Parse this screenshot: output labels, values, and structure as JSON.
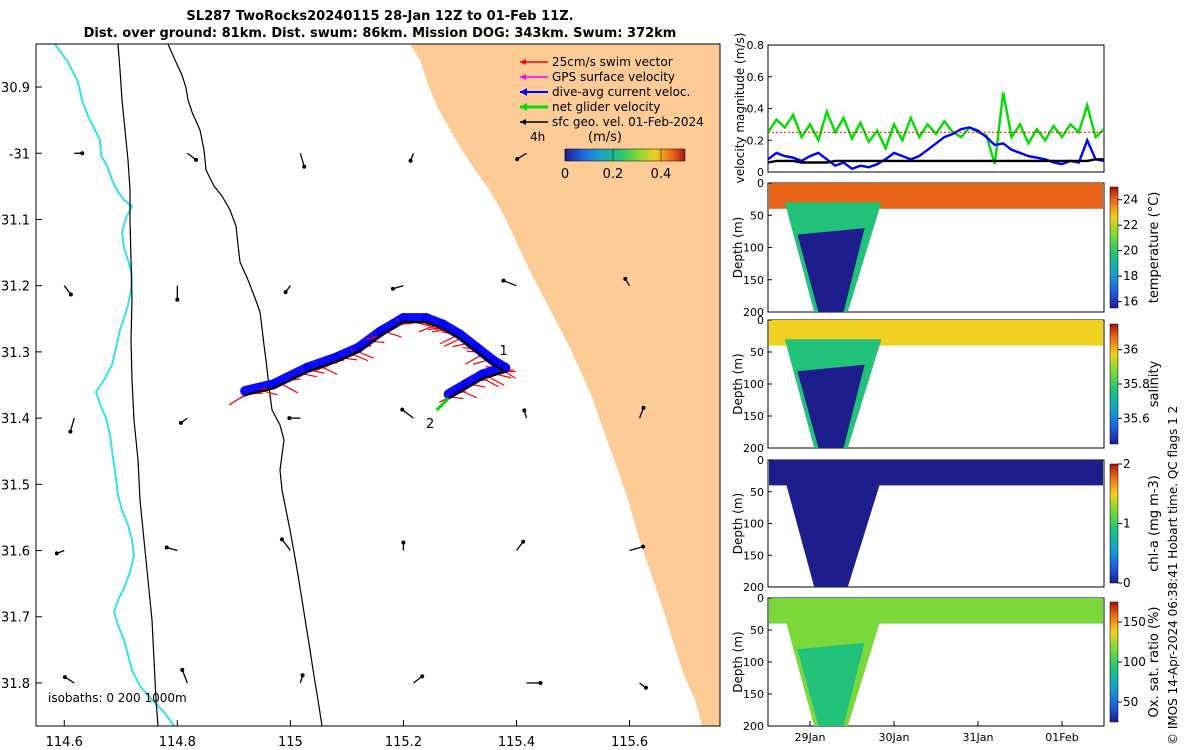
{
  "title_lines": [
    "SL287 TwoRocks20240115 28-Jan 12Z to 01-Feb 11Z.",
    "Dist. over ground: 81km. Dist. swum: 86km. Mission DOG: 343km. Swum: 372km"
  ],
  "side_note": "© IMOS 14-Apr-2024 06:38:41 Hobart time. QC flags 1  2",
  "colors": {
    "land": "#fccb96",
    "isobath_0": "#34e3e3",
    "swim_vector": "#ff0000",
    "gps_velocity": "#ff00ff",
    "current": "#0000ff",
    "net_velocity": "#00dd00",
    "geo_velocity": "#000000"
  },
  "chart_data": [
    {
      "type": "scatter",
      "name": "map",
      "x_ticks": [
        114.6,
        114.8,
        115,
        115.2,
        115.4,
        115.6
      ],
      "x_tick_labels": [
        "114.6",
        "114.8",
        "115",
        "115.2",
        "115.4",
        "115.6"
      ],
      "y_ticks": [
        -30.9,
        -31,
        -31.1,
        -31.2,
        -31.3,
        -31.4,
        -31.5,
        -31.6,
        -31.7,
        -31.8
      ],
      "y_tick_labels": [
        "30.9",
        "-31",
        "31.1",
        "31.2",
        "31.3",
        "31.4",
        "31.5",
        "31.6",
        "31.7",
        "31.8"
      ],
      "xlim": [
        114.55,
        115.76
      ],
      "ylim": [
        -31.865,
        -30.835
      ],
      "legend": {
        "position": "top-right",
        "entries": [
          {
            "label": "25cm/s swim vector",
            "color": "#ff0000"
          },
          {
            "label": "GPS surface velocity",
            "color": "#ff00ff"
          },
          {
            "label": "dive-avg current veloc.",
            "color": "#0000ff"
          },
          {
            "label": "net glider velocity",
            "color": "#00dd00"
          },
          {
            "label": "sfc geo. vel. 01-Feb-2024",
            "color": "#000000"
          }
        ]
      },
      "interval_label": "4h",
      "colorbar": {
        "title": "(m/s)",
        "range": [
          0,
          0.5
        ],
        "ticks": [
          0,
          0.2,
          0.4
        ],
        "tick_labels": [
          "0",
          "0.2",
          "0.4"
        ]
      },
      "isobath_label": "isobaths: 0   200  1000m",
      "track": [
        [
          114.92,
          -31.365
        ],
        [
          114.97,
          -31.355
        ],
        [
          115.03,
          -31.33
        ],
        [
          115.08,
          -31.315
        ],
        [
          115.12,
          -31.3
        ],
        [
          115.16,
          -31.275
        ],
        [
          115.2,
          -31.255
        ],
        [
          115.24,
          -31.255
        ],
        [
          115.27,
          -31.265
        ],
        [
          115.3,
          -31.28
        ],
        [
          115.33,
          -31.3
        ],
        [
          115.36,
          -31.32
        ],
        [
          115.38,
          -31.33
        ],
        [
          115.34,
          -31.34
        ],
        [
          115.31,
          -31.355
        ],
        [
          115.28,
          -31.37
        ]
      ],
      "waypoints": [
        {
          "label": "1",
          "lon": 115.37,
          "lat": -31.305
        },
        {
          "label": "2",
          "lon": 115.24,
          "lat": -31.415
        }
      ]
    },
    {
      "type": "line",
      "name": "velocity",
      "ylabel": "velocity magnitude (m/s)",
      "ylim": [
        0,
        0.8
      ],
      "yticks": [
        0,
        0.2,
        0.4,
        0.6,
        0.8
      ],
      "ytick_labels": [
        "0",
        "0.2",
        "0.4",
        "0.6",
        "0.8"
      ],
      "x": [
        0,
        0.1,
        0.2,
        0.3,
        0.4,
        0.5,
        0.6,
        0.7,
        0.8,
        0.9,
        1.0,
        1.1,
        1.2,
        1.3,
        1.4,
        1.5,
        1.6,
        1.7,
        1.8,
        1.9,
        2.0,
        2.1,
        2.2,
        2.3,
        2.4,
        2.5,
        2.6,
        2.7,
        2.8,
        2.9,
        3.0,
        3.1,
        3.2,
        3.3,
        3.4,
        3.5,
        3.6,
        3.7,
        3.8,
        3.9,
        4.0
      ],
      "series": [
        {
          "color": "#00dd00",
          "values": [
            0.25,
            0.33,
            0.28,
            0.36,
            0.22,
            0.3,
            0.2,
            0.38,
            0.25,
            0.34,
            0.21,
            0.31,
            0.19,
            0.26,
            0.15,
            0.3,
            0.2,
            0.34,
            0.22,
            0.3,
            0.24,
            0.32,
            0.25,
            0.22,
            0.28,
            0.25,
            0.23,
            0.05,
            0.5,
            0.22,
            0.3,
            0.18,
            0.27,
            0.2,
            0.29,
            0.22,
            0.3,
            0.25,
            0.42,
            0.22,
            0.27
          ]
        },
        {
          "color": "#0000ff",
          "values": [
            0.08,
            0.12,
            0.1,
            0.09,
            0.07,
            0.1,
            0.12,
            0.08,
            0.04,
            0.06,
            0.02,
            0.04,
            0.03,
            0.05,
            0.08,
            0.12,
            0.1,
            0.08,
            0.1,
            0.14,
            0.18,
            0.22,
            0.24,
            0.27,
            0.28,
            0.26,
            0.22,
            0.17,
            0.18,
            0.14,
            0.12,
            0.1,
            0.09,
            0.08,
            0.06,
            0.05,
            0.07,
            0.06,
            0.2,
            0.08,
            0.07
          ]
        },
        {
          "color": "#000000",
          "values": [
            0.06,
            0.07,
            0.07,
            0.07,
            0.06,
            0.06,
            0.06,
            0.06,
            0.07,
            0.07,
            0.07,
            0.07,
            0.07,
            0.07,
            0.07,
            0.07,
            0.07,
            0.07,
            0.07,
            0.07,
            0.07,
            0.07,
            0.07,
            0.07,
            0.07,
            0.07,
            0.07,
            0.07,
            0.07,
            0.07,
            0.07,
            0.07,
            0.07,
            0.07,
            0.07,
            0.07,
            0.07,
            0.07,
            0.07,
            0.08,
            0.08
          ]
        },
        {
          "color": "#ff0000",
          "dashed": true,
          "values": [
            0.25,
            0.25,
            0.25,
            0.25,
            0.25,
            0.25,
            0.25,
            0.25,
            0.25,
            0.25,
            0.25,
            0.25,
            0.25,
            0.25,
            0.25,
            0.25,
            0.25,
            0.25,
            0.25,
            0.25,
            0.25,
            0.25,
            0.25,
            0.25,
            0.25,
            0.25,
            0.25,
            0.25,
            0.25,
            0.25,
            0.25,
            0.25,
            0.25,
            0.25,
            0.25,
            0.25,
            0.25,
            0.25,
            0.25,
            0.25,
            0.25
          ]
        }
      ]
    },
    {
      "type": "heatmap",
      "name": "temperature",
      "ylabel": "Depth (m)",
      "ylim": [
        0,
        200
      ],
      "yticks": [
        0,
        50,
        100,
        150,
        200
      ],
      "ytick_labels": [
        "0",
        "50",
        "100",
        "150",
        "200"
      ],
      "colorbar_label": "temperature (°C)",
      "colorbar_range": [
        15.5,
        25
      ],
      "colorbar_ticks": [
        "16",
        "18",
        "20",
        "22",
        "24"
      ],
      "surface": 23.5,
      "deep": 16
    },
    {
      "type": "heatmap",
      "name": "salinity",
      "ylabel": "Depth (m)",
      "ylim": [
        0,
        200
      ],
      "yticks": [
        0,
        50,
        100,
        150,
        200
      ],
      "ytick_labels": [
        "0",
        "50",
        "100",
        "150",
        "200"
      ],
      "colorbar_label": "salinity",
      "colorbar_range": [
        35.45,
        36.15
      ],
      "colorbar_ticks": [
        "35.6",
        "35.8",
        "36"
      ],
      "surface": 35.95,
      "deep": 35.5
    },
    {
      "type": "heatmap",
      "name": "chlorophyll",
      "ylabel": "Depth (m)",
      "ylim": [
        0,
        200
      ],
      "yticks": [
        0,
        50,
        100,
        150,
        200
      ],
      "ytick_labels": [
        "0",
        "50",
        "100",
        "150",
        "200"
      ],
      "colorbar_label": "chl-a (mg m-3)",
      "colorbar_range": [
        0,
        2
      ],
      "colorbar_ticks": [
        "0",
        "1",
        "2"
      ],
      "surface": 0.1,
      "deep": 0.1
    },
    {
      "type": "heatmap",
      "name": "oxygen",
      "ylabel": "Depth (m)",
      "ylim": [
        0,
        200
      ],
      "yticks": [
        0,
        50,
        100,
        150,
        200
      ],
      "ytick_labels": [
        "0",
        "50",
        "100",
        "150",
        "200"
      ],
      "colorbar_label": "Ox. sat. ratio (%)",
      "colorbar_range": [
        25,
        175
      ],
      "colorbar_ticks": [
        "50",
        "100",
        "150"
      ],
      "surface": 108,
      "deep": 95
    }
  ],
  "time_axis": {
    "xlim": [
      0,
      4
    ],
    "ticks": [
      0.5,
      1.5,
      2.5,
      3.5
    ],
    "labels": [
      "29Jan",
      "30Jan",
      "31Jan",
      "01Feb"
    ]
  }
}
